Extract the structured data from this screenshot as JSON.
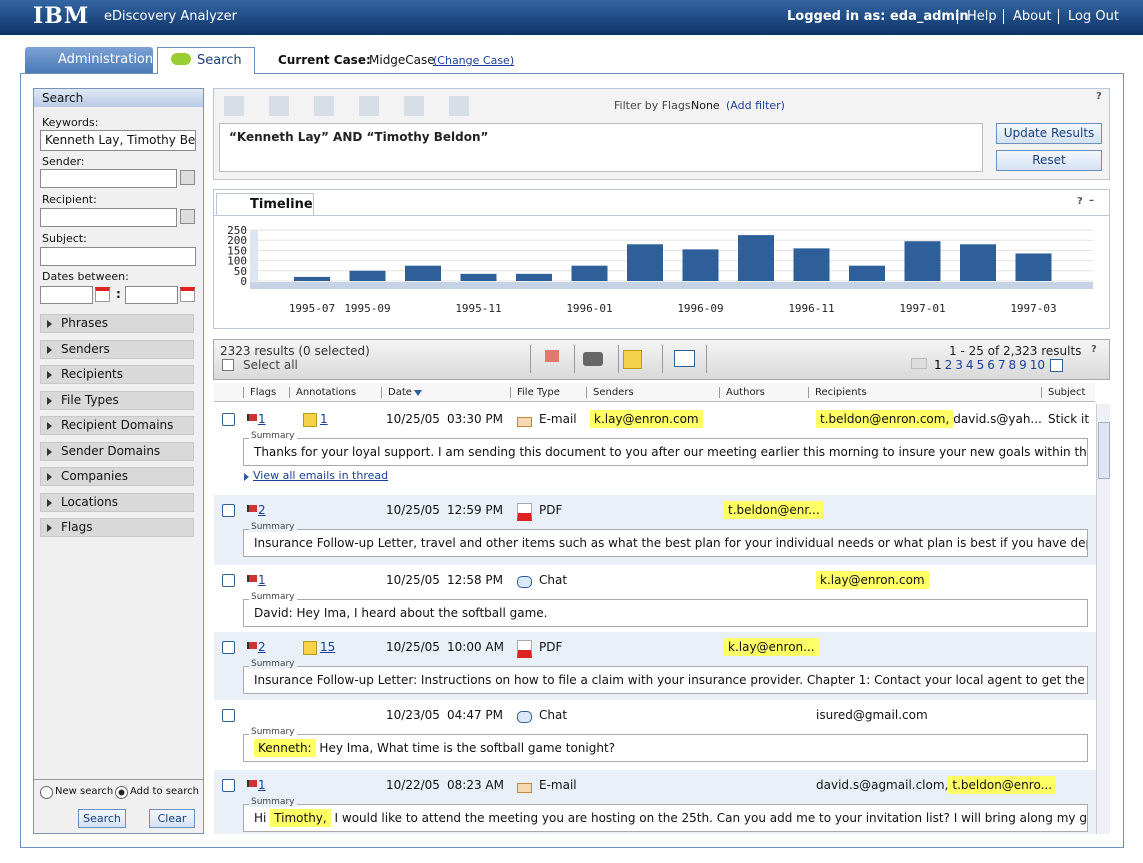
{
  "header": {
    "brand": "IBM",
    "product": "eDiscovery Analyzer",
    "logged_in": "Logged in as: eda_admin",
    "links": [
      "Help",
      "About",
      "Log Out"
    ]
  },
  "tabs": [
    "Administration",
    "Search"
  ],
  "current_case": {
    "label": "Current Case:",
    "name": "MidgeCase",
    "change": "(Change Case)"
  },
  "search_panel": {
    "title": "Search",
    "keywords_label": "Keywords:",
    "keywords_value": "Kenneth Lay, Timothy Bel",
    "sender_label": "Sender:",
    "recipient_label": "Recipient:",
    "subject_label": "Subject:",
    "dates_label": "Dates between:",
    "date_separator": ":",
    "facets": [
      "Phrases",
      "Senders",
      "Recipients",
      "File Types",
      "Recipient Domains",
      "Sender Domains",
      "Companies",
      "Locations",
      "Flags"
    ],
    "new_search": "New search",
    "add_to_search": "Add to search",
    "search_button": "Search",
    "clear_button": "Clear"
  },
  "query": {
    "filter_label": "Filter by Flags:",
    "filter_value": "None",
    "add_filter": "(Add filter)",
    "help": "?",
    "text": "“Kenneth Lay” AND “Timothy Beldon”",
    "update_button": "Update Results",
    "reset_button": "Reset"
  },
  "timeline": {
    "tab": "Timeline",
    "help": "?",
    "minimize": "–"
  },
  "chart_data": {
    "type": "bar",
    "categories": [
      "1995-07",
      "1995-09",
      null,
      "1995-11",
      null,
      "1996-01",
      null,
      "1996-09",
      null,
      "1996-11",
      null,
      "1997-01",
      null,
      "1997-03"
    ],
    "values": [
      20,
      50,
      75,
      35,
      35,
      75,
      180,
      155,
      225,
      160,
      75,
      195,
      180,
      135
    ],
    "color": "#2e5f98",
    "ylim": [
      0,
      250
    ],
    "yticks": [
      0,
      50,
      100,
      150,
      200,
      250
    ],
    "grid": true
  },
  "results": {
    "count": "2323 results (0 selected)",
    "select_all": "Select all",
    "range": "1 - 25 of 2,323 results",
    "help": "?",
    "pages": [
      1,
      2,
      3,
      4,
      5,
      6,
      7,
      8,
      9,
      10
    ],
    "columns": [
      "Flags",
      "Annotations",
      "Date",
      "File Type",
      "Senders",
      "Authors",
      "Recipients",
      "Subject"
    ],
    "summary_label": "Summary",
    "rows": [
      {
        "flags": 1,
        "annotations": 1,
        "date": "10/25/05",
        "time": "03:30 PM",
        "file_type": "E-mail",
        "senders": [
          {
            "text": "k.lay@enron.com",
            "highlight": true
          }
        ],
        "recipients": [
          {
            "text": "t.beldon@enron.com,",
            "highlight": true
          },
          {
            "text": "david.s@yah...",
            "highlight": false
          }
        ],
        "subject": "Stick it",
        "summary": [
          {
            "text": "Thanks for your loyal support.  I am sending this document to you after our meeting earlier this morning to insure your new goals within the...",
            "highlight": false
          }
        ],
        "thread_link": "View all emails in thread"
      },
      {
        "flags": 2,
        "date": "10/25/05",
        "time": "12:59 PM",
        "file_type": "PDF",
        "authors": [
          {
            "text": "t.beldon@enr...",
            "highlight": true
          }
        ],
        "summary": [
          {
            "text": "Insurance Follow-up Letter, travel and other items such as what the best plan for your individual needs or what plan is best if you have dependents or...",
            "highlight": false
          }
        ]
      },
      {
        "flags": 1,
        "date": "10/25/05",
        "time": "12:58 PM",
        "file_type": "Chat",
        "recipients": [
          {
            "text": "k.lay@enron.com",
            "highlight": true
          }
        ],
        "summary": [
          {
            "text": "David:     Hey Ima, I heard about the softball game.",
            "highlight": false
          }
        ]
      },
      {
        "flags": 2,
        "annotations": 15,
        "date": "10/25/05",
        "time": "10:00 AM",
        "file_type": "PDF",
        "authors": [
          {
            "text": "k.lay@enron...",
            "highlight": true
          }
        ],
        "summary": [
          {
            "text": "Insurance Follow-up Letter: Instructions on how to file a claim with your insurance provider. Chapter 1: Contact your local agent to get the necessary...",
            "highlight": false
          }
        ]
      },
      {
        "date": "10/23/05",
        "time": "04:47 PM",
        "file_type": "Chat",
        "recipients": [
          {
            "text": "isured@gmail.com",
            "highlight": false
          }
        ],
        "summary": [
          {
            "text": "Kenneth:",
            "highlight": true
          },
          {
            "text": "     Hey Ima, What time is the softball game tonight?",
            "highlight": false
          }
        ]
      },
      {
        "flags": 1,
        "date": "10/22/05",
        "time": "08:23 AM",
        "file_type": "E-mail",
        "recipients": [
          {
            "text": "david.s@agmail.clom,",
            "highlight": false
          },
          {
            "text": "t.beldon@enro...",
            "highlight": true
          }
        ],
        "summary": [
          {
            "text": "Hi ",
            "highlight": false
          },
          {
            "text": "Timothy,",
            "highlight": true
          },
          {
            "text": " I would like to attend the meeting you are hosting on the 25th. Can you add me to your invitation list? I will bring along my goal set lists for...",
            "highlight": false
          }
        ]
      }
    ]
  }
}
